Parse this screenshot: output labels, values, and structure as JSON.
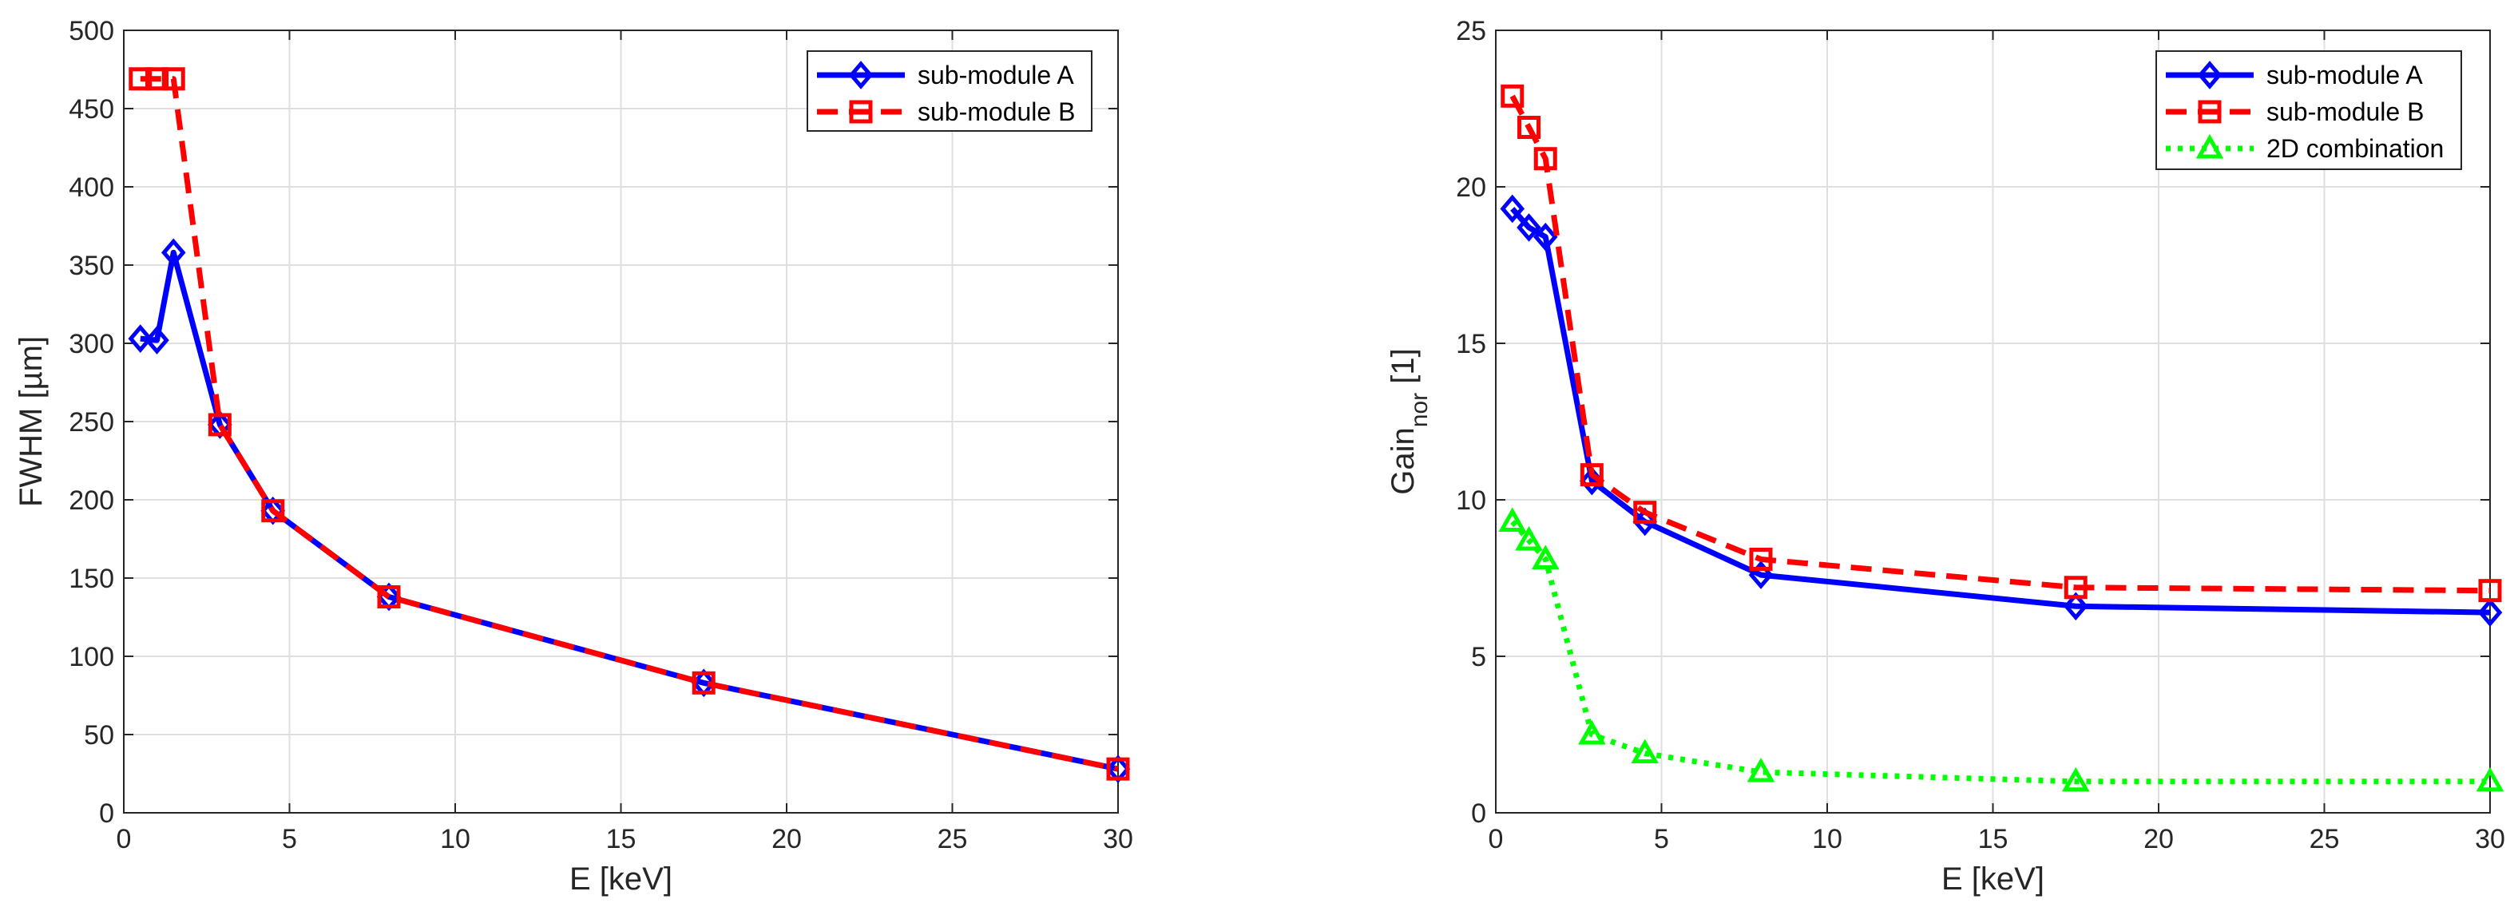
{
  "chart_data": [
    {
      "type": "line",
      "xlabel": "E [keV]",
      "ylabel": "FWHM [µm]",
      "xlim": [
        0,
        30
      ],
      "ylim": [
        0,
        500
      ],
      "xticks": [
        0,
        5,
        10,
        15,
        20,
        25,
        30
      ],
      "yticks": [
        0,
        50,
        100,
        150,
        200,
        250,
        300,
        350,
        400,
        450,
        500
      ],
      "grid": true,
      "legend_position": "top-right",
      "series": [
        {
          "name": "sub-module A",
          "color": "#0000ff",
          "line": "solid",
          "marker": "diamond",
          "x": [
            0.5,
            1.0,
            1.5,
            2.9,
            4.5,
            8.0,
            17.5,
            30.0
          ],
          "y": [
            303,
            302,
            358,
            248,
            193,
            138,
            83,
            28
          ]
        },
        {
          "name": "sub-module B",
          "color": "#ff0000",
          "line": "dashed",
          "marker": "square",
          "x": [
            0.5,
            1.0,
            1.5,
            2.9,
            4.5,
            8.0,
            17.5,
            30.0
          ],
          "y": [
            469,
            469,
            469,
            248,
            193,
            138,
            83,
            28
          ]
        }
      ]
    },
    {
      "type": "line",
      "xlabel": "E [keV]",
      "ylabel": "Gain",
      "ylabel_sub": "nor",
      "ylabel_suffix": " [1]",
      "xlim": [
        0,
        30
      ],
      "ylim": [
        0,
        25
      ],
      "xticks": [
        0,
        5,
        10,
        15,
        20,
        25,
        30
      ],
      "yticks": [
        0,
        5,
        10,
        15,
        20,
        25
      ],
      "grid": true,
      "legend_position": "top-right",
      "series": [
        {
          "name": "sub-module A",
          "color": "#0000ff",
          "line": "solid",
          "marker": "diamond",
          "x": [
            0.5,
            1.0,
            1.5,
            2.9,
            4.5,
            8.0,
            17.5,
            30.0
          ],
          "y": [
            19.3,
            18.7,
            18.4,
            10.6,
            9.3,
            7.6,
            6.6,
            6.4
          ]
        },
        {
          "name": "sub-module B",
          "color": "#ff0000",
          "line": "dashed",
          "marker": "square",
          "x": [
            0.5,
            1.0,
            1.5,
            2.9,
            4.5,
            8.0,
            17.5,
            30.0
          ],
          "y": [
            22.9,
            21.9,
            20.9,
            10.8,
            9.6,
            8.1,
            7.2,
            7.1
          ]
        },
        {
          "name": "2D combination",
          "color": "#00ff00",
          "line": "dotted",
          "marker": "triangle",
          "x": [
            0.5,
            1.0,
            1.5,
            2.9,
            4.5,
            8.0,
            17.5,
            30.0
          ],
          "y": [
            9.3,
            8.7,
            8.1,
            2.5,
            1.9,
            1.3,
            1.0,
            1.0
          ]
        }
      ]
    }
  ]
}
